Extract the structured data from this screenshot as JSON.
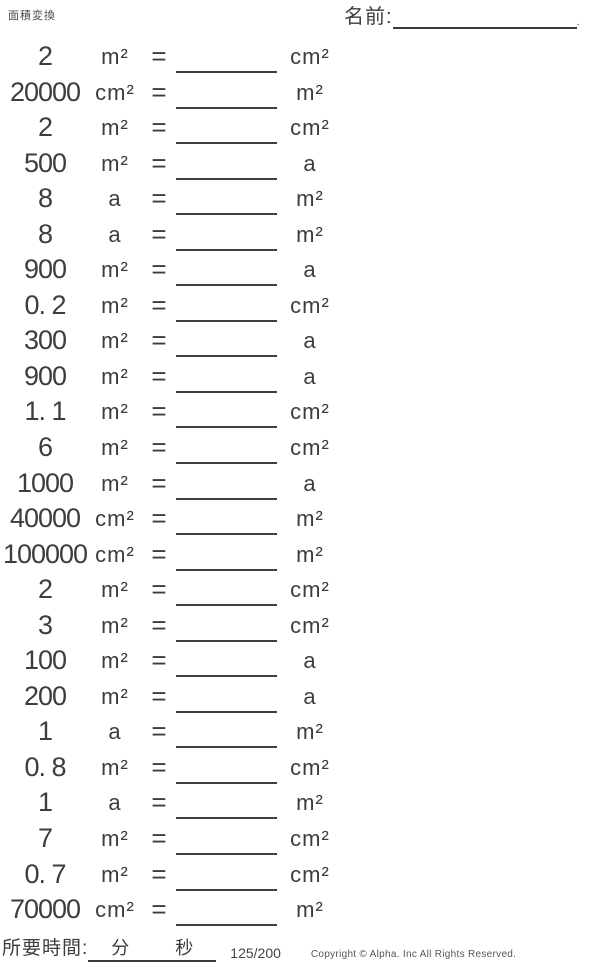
{
  "header": {
    "title": "面積変換",
    "name_label": "名前:",
    "name_dot": "."
  },
  "equals_sign": "=",
  "problems": [
    {
      "value": "2",
      "from_unit": "m²",
      "to_unit": "cm²"
    },
    {
      "value": "20000",
      "from_unit": "cm²",
      "to_unit": "m²"
    },
    {
      "value": "2",
      "from_unit": "m²",
      "to_unit": "cm²"
    },
    {
      "value": "500",
      "from_unit": "m²",
      "to_unit": "a"
    },
    {
      "value": "8",
      "from_unit": "a",
      "to_unit": "m²"
    },
    {
      "value": "8",
      "from_unit": "a",
      "to_unit": "m²"
    },
    {
      "value": "900",
      "from_unit": "m²",
      "to_unit": "a"
    },
    {
      "value": "0. 2",
      "from_unit": "m²",
      "to_unit": "cm²"
    },
    {
      "value": "300",
      "from_unit": "m²",
      "to_unit": "a"
    },
    {
      "value": "900",
      "from_unit": "m²",
      "to_unit": "a"
    },
    {
      "value": "1. 1",
      "from_unit": "m²",
      "to_unit": "cm²"
    },
    {
      "value": "6",
      "from_unit": "m²",
      "to_unit": "cm²"
    },
    {
      "value": "1000",
      "from_unit": "m²",
      "to_unit": "a"
    },
    {
      "value": "40000",
      "from_unit": "cm²",
      "to_unit": "m²"
    },
    {
      "value": "100000",
      "from_unit": "cm²",
      "to_unit": "m²"
    },
    {
      "value": "2",
      "from_unit": "m²",
      "to_unit": "cm²"
    },
    {
      "value": "3",
      "from_unit": "m²",
      "to_unit": "cm²"
    },
    {
      "value": "100",
      "from_unit": "m²",
      "to_unit": "a"
    },
    {
      "value": "200",
      "from_unit": "m²",
      "to_unit": "a"
    },
    {
      "value": "1",
      "from_unit": "a",
      "to_unit": "m²"
    },
    {
      "value": "0. 8",
      "from_unit": "m²",
      "to_unit": "cm²"
    },
    {
      "value": "1",
      "from_unit": "a",
      "to_unit": "m²"
    },
    {
      "value": "7",
      "from_unit": "m²",
      "to_unit": "cm²"
    },
    {
      "value": "0. 7",
      "from_unit": "m²",
      "to_unit": "cm²"
    },
    {
      "value": "70000",
      "from_unit": "cm²",
      "to_unit": "m²"
    }
  ],
  "footer": {
    "time_label": "所要時間:",
    "minutes_label": "分",
    "seconds_label": "秒",
    "page": "125/200",
    "copyright": "Copyright © Alpha. Inc All Rights Reserved."
  },
  "colors": {
    "text": "#3d3d3d",
    "line": "#3f3f3f",
    "muted": "#555555"
  }
}
